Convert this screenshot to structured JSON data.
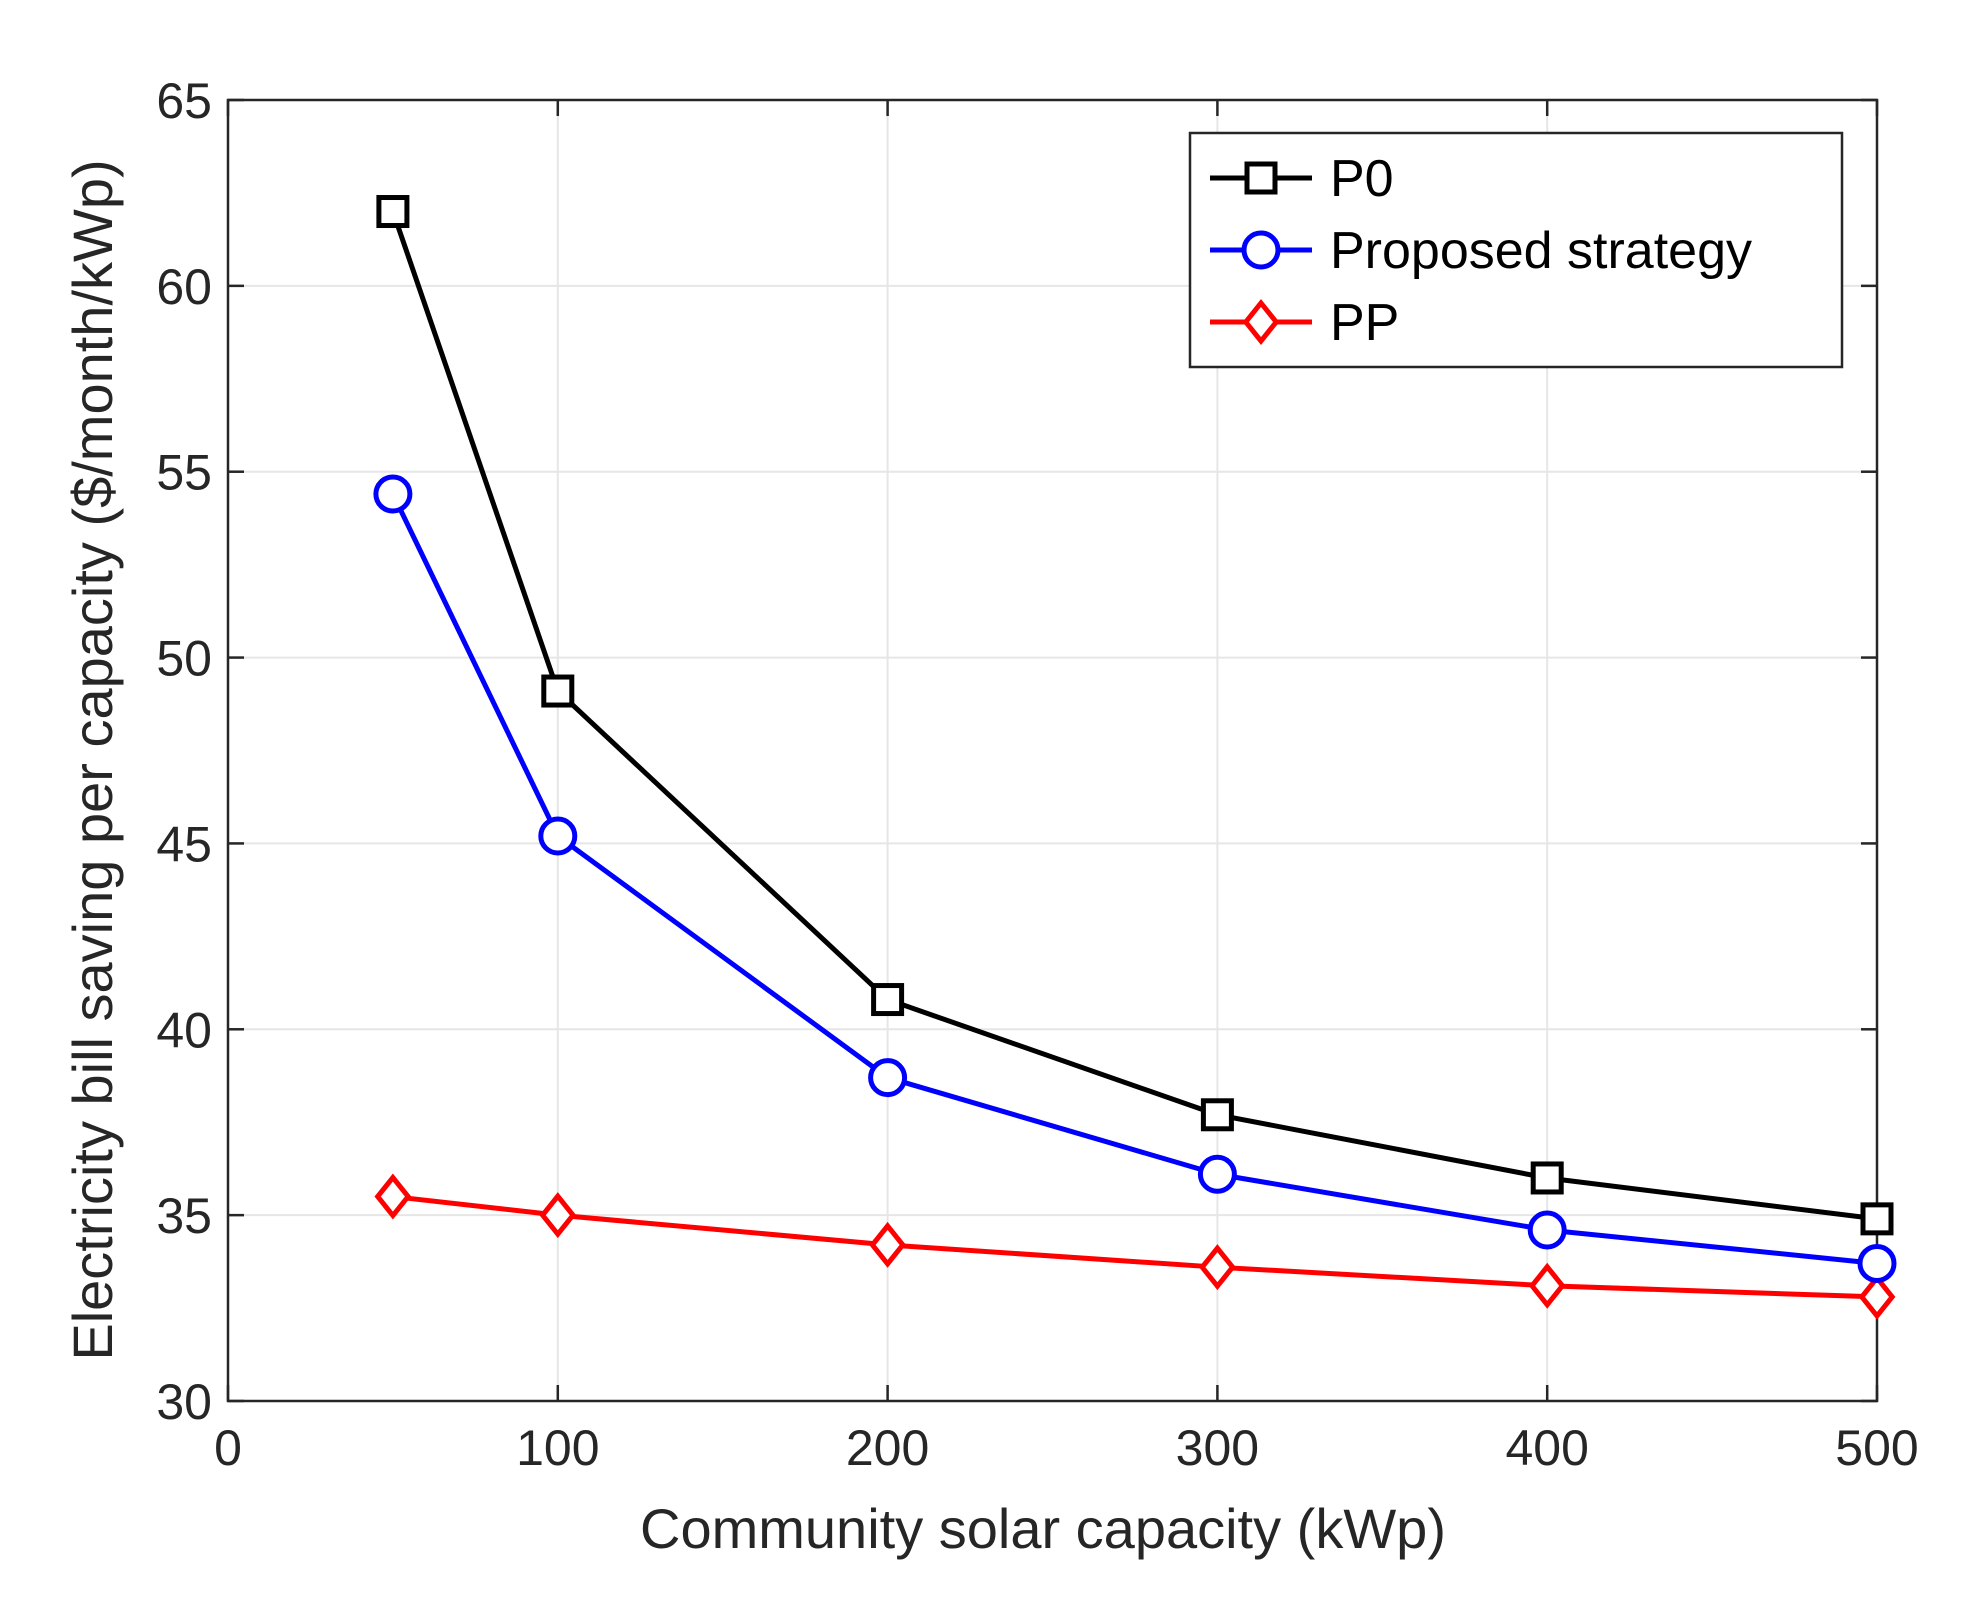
{
  "chart_data": {
    "type": "line",
    "title": "",
    "xlabel": "Community solar capacity (kWp)",
    "ylabel": "Electricity bill saving per capacity ($/month/kWp)",
    "xlim": [
      0,
      500
    ],
    "ylim": [
      30,
      65
    ],
    "xticks": [
      0,
      100,
      200,
      300,
      400,
      500
    ],
    "yticks": [
      30,
      35,
      40,
      45,
      50,
      55,
      60,
      65
    ],
    "xtick_labels": [
      "0",
      "100",
      "200",
      "300",
      "400",
      "500"
    ],
    "ytick_labels": [
      "30",
      "35",
      "40",
      "45",
      "50",
      "55",
      "60",
      "65"
    ],
    "grid": true,
    "legend_position": "top-right",
    "x": [
      50,
      100,
      200,
      300,
      400,
      500
    ],
    "series": [
      {
        "name": "P0",
        "color": "#000000",
        "marker": "square",
        "values": [
          62.0,
          49.1,
          40.8,
          37.7,
          36.0,
          34.9
        ]
      },
      {
        "name": "Proposed strategy",
        "color": "#0000ff",
        "marker": "circle",
        "values": [
          54.4,
          45.2,
          38.7,
          36.1,
          34.6,
          33.7
        ]
      },
      {
        "name": "PP",
        "color": "#ff0000",
        "marker": "diamond",
        "values": [
          35.5,
          35.0,
          34.2,
          33.6,
          33.1,
          32.8
        ]
      }
    ]
  }
}
